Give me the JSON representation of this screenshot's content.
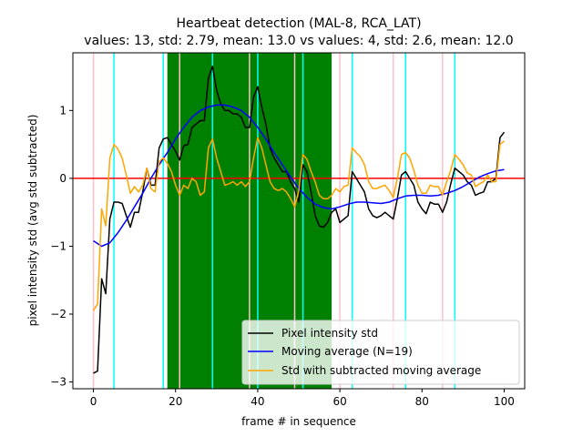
{
  "chart_data": {
    "type": "line",
    "title_line1": "Heartbeat detection (MAL-8, RCA_LAT)",
    "title_line2": "values: 13, std: 2.79, mean: 13.0 vs values: 4, std: 2.6, mean: 12.0",
    "xlabel": "frame # in sequence",
    "ylabel": "pixel intensity std (avg std subtracted)",
    "xlim": [
      -5,
      105
    ],
    "ylim": [
      -3.1,
      1.85
    ],
    "xticks": [
      0,
      20,
      40,
      60,
      80,
      100
    ],
    "yticks": [
      -3,
      -2,
      -1,
      0,
      1
    ],
    "grid": false,
    "legend_position": "lower right",
    "green_band": {
      "x": [
        18,
        58
      ],
      "color": "#008000"
    },
    "cyan_lines": {
      "x": [
        5,
        17,
        29,
        40,
        51,
        63,
        76,
        88
      ],
      "color": "#00ffff"
    },
    "pink_lines": {
      "x": [
        0,
        21,
        38,
        49,
        60,
        73,
        85
      ],
      "color": "#ffc0cb"
    },
    "zero_line": {
      "y": 0,
      "color": "#ff0000"
    },
    "series": [
      {
        "name": "Pixel intensity std",
        "color": "#000000",
        "x": [
          0,
          1,
          2,
          3,
          4,
          5,
          6,
          7,
          8,
          9,
          10,
          11,
          12,
          13,
          14,
          15,
          16,
          17,
          18,
          19,
          20,
          21,
          22,
          23,
          24,
          25,
          26,
          27,
          28,
          29,
          30,
          31,
          32,
          33,
          34,
          35,
          36,
          37,
          38,
          39,
          40,
          41,
          42,
          43,
          44,
          45,
          46,
          47,
          48,
          49,
          50,
          51,
          52,
          53,
          54,
          55,
          56,
          57,
          58,
          59,
          60,
          61,
          62,
          63,
          64,
          65,
          66,
          67,
          68,
          69,
          70,
          71,
          72,
          73,
          74,
          75,
          76,
          77,
          78,
          79,
          80,
          81,
          82,
          83,
          84,
          85,
          86,
          87,
          88,
          89,
          90,
          91,
          92,
          93,
          94,
          95,
          96,
          97,
          98,
          99,
          100
        ],
        "values": [
          -2.87,
          -2.84,
          -1.48,
          -1.7,
          -0.6,
          -0.35,
          -0.35,
          -0.37,
          -0.55,
          -0.72,
          -0.5,
          -0.5,
          -0.2,
          0.15,
          -0.1,
          -0.1,
          0.45,
          0.58,
          0.6,
          0.5,
          0.4,
          0.27,
          0.48,
          0.5,
          0.75,
          0.8,
          0.85,
          0.85,
          1.48,
          1.65,
          1.3,
          1.1,
          1.0,
          1.0,
          0.95,
          0.95,
          0.9,
          0.75,
          0.75,
          1.2,
          1.35,
          1.05,
          0.8,
          0.45,
          0.3,
          0.2,
          0.1,
          0.1,
          -0.05,
          -0.15,
          -0.35,
          0.2,
          0.1,
          -0.2,
          -0.55,
          -0.7,
          -0.72,
          -0.65,
          -0.5,
          -0.45,
          -0.65,
          -0.6,
          -0.55,
          0.1,
          0.0,
          -0.1,
          -0.2,
          -0.45,
          -0.55,
          -0.58,
          -0.55,
          -0.5,
          -0.55,
          -0.6,
          -0.3,
          0.05,
          0.1,
          0.0,
          -0.1,
          -0.35,
          -0.45,
          -0.52,
          -0.35,
          -0.38,
          -0.38,
          -0.5,
          -0.35,
          -0.08,
          0.15,
          0.1,
          0.05,
          -0.05,
          -0.1,
          -0.25,
          -0.22,
          -0.2,
          -0.05,
          -0.05,
          0.0,
          0.6,
          0.68
        ]
      },
      {
        "name": "Moving average (N=19)",
        "color": "#0000ff",
        "x": [
          0,
          2,
          4,
          6,
          8,
          10,
          12,
          14,
          16,
          18,
          20,
          22,
          24,
          26,
          28,
          30,
          32,
          34,
          36,
          38,
          40,
          42,
          44,
          46,
          48,
          50,
          52,
          54,
          56,
          58,
          60,
          62,
          64,
          66,
          68,
          70,
          72,
          74,
          76,
          78,
          80,
          82,
          84,
          86,
          88,
          90,
          92,
          94,
          96,
          98,
          100
        ],
        "values": [
          -0.92,
          -1.0,
          -0.95,
          -0.8,
          -0.62,
          -0.42,
          -0.22,
          0.0,
          0.2,
          0.38,
          0.58,
          0.75,
          0.9,
          1.0,
          1.05,
          1.08,
          1.08,
          1.05,
          1.0,
          0.9,
          0.75,
          0.58,
          0.38,
          0.2,
          0.02,
          -0.15,
          -0.28,
          -0.38,
          -0.43,
          -0.45,
          -0.42,
          -0.38,
          -0.35,
          -0.35,
          -0.36,
          -0.37,
          -0.35,
          -0.3,
          -0.26,
          -0.25,
          -0.25,
          -0.26,
          -0.25,
          -0.22,
          -0.18,
          -0.12,
          -0.05,
          0.02,
          0.07,
          0.11,
          0.13
        ]
      },
      {
        "name": "Std with subtracted moving average",
        "color": "#ffa500",
        "x": [
          0,
          1,
          2,
          3,
          4,
          5,
          6,
          7,
          8,
          9,
          10,
          11,
          12,
          13,
          14,
          15,
          16,
          17,
          18,
          19,
          20,
          21,
          22,
          23,
          24,
          25,
          26,
          27,
          28,
          29,
          30,
          31,
          32,
          33,
          34,
          35,
          36,
          37,
          38,
          39,
          40,
          41,
          42,
          43,
          44,
          45,
          46,
          47,
          48,
          49,
          50,
          51,
          52,
          53,
          54,
          55,
          56,
          57,
          58,
          59,
          60,
          61,
          62,
          63,
          64,
          65,
          66,
          67,
          68,
          69,
          70,
          71,
          72,
          73,
          74,
          75,
          76,
          77,
          78,
          79,
          80,
          81,
          82,
          83,
          84,
          85,
          86,
          87,
          88,
          89,
          90,
          91,
          92,
          93,
          94,
          95,
          96,
          97,
          98,
          99,
          100
        ],
        "values": [
          -1.95,
          -1.85,
          -0.45,
          -0.7,
          0.3,
          0.5,
          0.43,
          0.3,
          0.05,
          -0.22,
          -0.12,
          -0.2,
          -0.1,
          0.15,
          -0.15,
          -0.2,
          0.25,
          0.3,
          0.22,
          0.1,
          -0.1,
          -0.25,
          -0.1,
          -0.15,
          0.0,
          -0.05,
          -0.25,
          -0.2,
          0.45,
          0.58,
          0.3,
          0.1,
          -0.1,
          -0.08,
          -0.05,
          -0.1,
          -0.05,
          -0.12,
          -0.05,
          0.3,
          0.6,
          0.45,
          0.2,
          -0.05,
          -0.15,
          -0.18,
          -0.15,
          -0.2,
          -0.3,
          -0.42,
          -0.18,
          0.35,
          0.28,
          0.1,
          -0.05,
          -0.25,
          -0.3,
          -0.3,
          -0.25,
          -0.15,
          -0.2,
          -0.12,
          -0.1,
          0.45,
          0.38,
          0.32,
          0.2,
          -0.05,
          -0.15,
          -0.15,
          -0.12,
          -0.1,
          -0.18,
          -0.28,
          0.0,
          0.35,
          0.38,
          0.3,
          0.12,
          -0.1,
          -0.22,
          -0.22,
          -0.1,
          -0.12,
          -0.12,
          -0.25,
          -0.05,
          0.12,
          0.35,
          0.28,
          0.2,
          0.08,
          0.05,
          -0.12,
          -0.08,
          -0.05,
          0.05,
          -0.05,
          -0.05,
          0.5,
          0.55
        ]
      }
    ]
  }
}
